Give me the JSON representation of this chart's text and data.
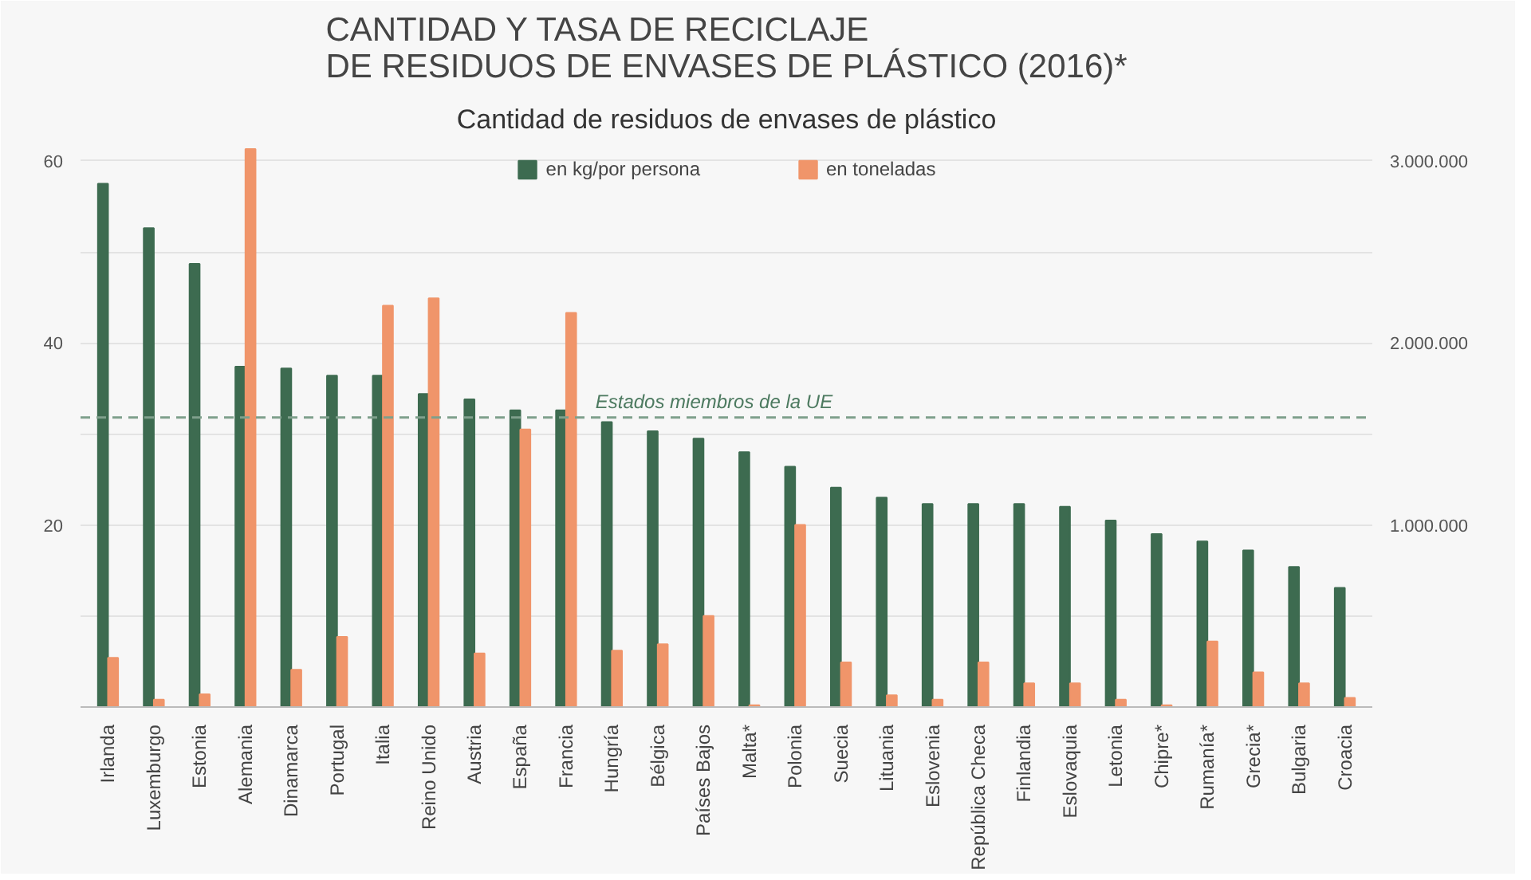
{
  "chart_data": {
    "type": "bar",
    "title": "CANTIDAD Y TASA DE RECICLAJE\nDE RESIDUOS DE ENVASES DE PLÁSTICO (2016)*",
    "subtitle": "Cantidad de residuos de envases de plástico",
    "categories": [
      "Irlanda",
      "Luxemburgo",
      "Estonia",
      "Alemania",
      "Dinamarca",
      "Portugal",
      "Italia",
      "Reino Unido",
      "Austria",
      "España",
      "Francia",
      "Hungría",
      "Bélgica",
      "Países Bajos",
      "Malta*",
      "Polonia",
      "Suecia",
      "Lituania",
      "Eslovenia",
      "República Checa",
      "Finlandia",
      "Eslovaquia",
      "Letonia",
      "Chipre*",
      "Rumanía*",
      "Grecia*",
      "Bulgaria",
      "Croacia"
    ],
    "series": [
      {
        "name": "en kg/por persona",
        "color": "#3d6b50",
        "values": [
          57.5,
          52.6,
          48.7,
          37.4,
          37.2,
          36.4,
          36.4,
          34.4,
          33.8,
          32.6,
          32.6,
          31.3,
          30.3,
          29.5,
          28,
          26.4,
          24.1,
          23,
          22.3,
          22.3,
          22.3,
          22,
          20.5,
          19,
          18.2,
          17.2,
          15.4,
          13.1
        ]
      },
      {
        "name": "en toneladas",
        "color": "#f0956a",
        "axis": "y2",
        "values": [
          270000,
          40000,
          70000,
          3065000,
          205000,
          385000,
          2205000,
          2245000,
          295000,
          1525000,
          2165000,
          310000,
          345000,
          500000,
          10000,
          1000000,
          245000,
          65000,
          40000,
          245000,
          130000,
          130000,
          40000,
          10000,
          360000,
          190000,
          130000,
          50000
        ]
      }
    ],
    "ylim": [
      0,
      62
    ],
    "yticks": [
      {
        "value": 10,
        "label": null
      },
      20,
      {
        "value": 30,
        "label": null
      },
      40,
      {
        "value": 50,
        "label": null
      },
      60
    ],
    "y2lim": [
      0,
      3100000
    ],
    "y2ticks": [
      {
        "value": 1000000,
        "label": "1.000.000"
      },
      {
        "value": 2000000,
        "label": "2.000.000"
      },
      {
        "value": 3000000,
        "label": "3.000.000"
      }
    ],
    "ref_lines": [
      {
        "axis": "y",
        "value": 31.8,
        "label": "Estados miembros de la UE",
        "color": "#7fa08c",
        "line_style": "dashed"
      }
    ],
    "grid": "y",
    "legend": "top"
  }
}
